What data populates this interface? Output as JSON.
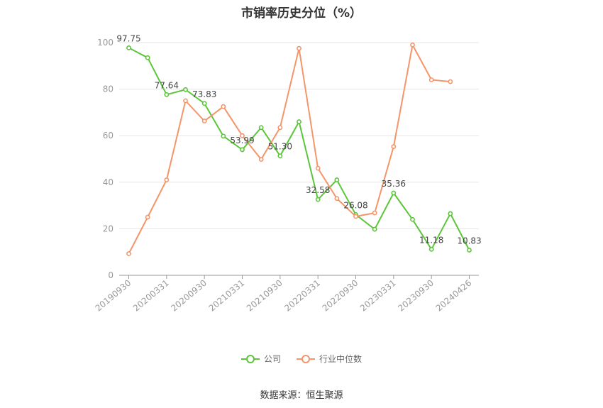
{
  "chart_data": {
    "type": "line",
    "title": "市销率历史分位（%）",
    "source": "数据来源：恒生聚源",
    "ylim": [
      0,
      100
    ],
    "yticks": [
      0,
      20,
      40,
      60,
      80,
      100
    ],
    "grid": true,
    "legend_position": "bottom",
    "x": [
      "20190930",
      "20191231",
      "20200331",
      "20200630",
      "20200930",
      "20201231",
      "20210331",
      "20210630",
      "20210930",
      "20211231",
      "20220331",
      "20220630",
      "20220930",
      "20221231",
      "20230331",
      "20230630",
      "20230930",
      "20231231",
      "20240426"
    ],
    "xticks": [
      "20190930",
      "20200331",
      "20200930",
      "20210331",
      "20210930",
      "20220331",
      "20220930",
      "20230331",
      "20230930",
      "20240426"
    ],
    "series": [
      {
        "name": "公司",
        "color": "#5cc63a",
        "values": [
          97.75,
          93.5,
          77.64,
          79.8,
          73.83,
          59.8,
          53.99,
          63.5,
          51.3,
          66.0,
          32.58,
          41.0,
          26.08,
          19.8,
          35.36,
          24.0,
          11.18,
          26.5,
          10.83
        ],
        "labels": {
          "0": "97.75",
          "2": "77.64",
          "4": "73.83",
          "6": "53.99",
          "8": "51.30",
          "10": "32.58",
          "12": "26.08",
          "14": "35.36",
          "16": "11.18",
          "18": "10.83"
        }
      },
      {
        "name": "行业中位数",
        "color": "#f4956a",
        "values": [
          9.3,
          25.0,
          41.0,
          75.0,
          66.3,
          72.5,
          60.0,
          49.8,
          63.5,
          97.5,
          46.0,
          33.0,
          25.3,
          26.8,
          55.3,
          99.0,
          84.0,
          83.2,
          null
        ]
      }
    ]
  }
}
